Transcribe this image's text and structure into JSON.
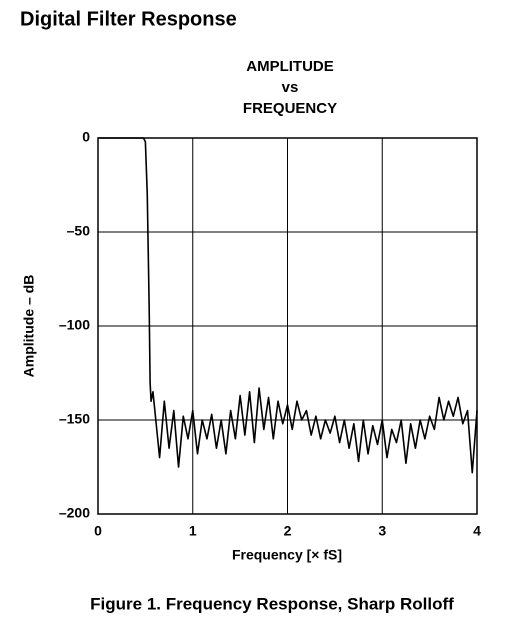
{
  "chart_data": {
    "type": "line",
    "heading": "Digital Filter Response",
    "title_lines": [
      "AMPLITUDE",
      "vs",
      "FREQUENCY"
    ],
    "x_label": "Frequency [× fS]",
    "y_label": "Amplitude – dB",
    "caption": "Figure 1. Frequency Response, Sharp Rolloff",
    "xlim": [
      0,
      4
    ],
    "ylim": [
      -200,
      0
    ],
    "xticks": [
      0,
      1,
      2,
      3,
      4
    ],
    "yticks": [
      0,
      {
        "value": -50,
        "label": "–50"
      },
      {
        "value": -100,
        "label": "–100"
      },
      {
        "value": -150,
        "label": "–150"
      },
      {
        "value": -200,
        "label": "–200"
      }
    ],
    "grid": true,
    "color": "#000000",
    "x": [
      0,
      0.2,
      0.4,
      0.48,
      0.5,
      0.52,
      0.54,
      0.55,
      0.56,
      0.58,
      0.6,
      0.65,
      0.7,
      0.75,
      0.8,
      0.85,
      0.9,
      0.95,
      1.0,
      1.05,
      1.1,
      1.15,
      1.2,
      1.25,
      1.3,
      1.35,
      1.4,
      1.45,
      1.5,
      1.55,
      1.6,
      1.65,
      1.7,
      1.75,
      1.8,
      1.85,
      1.9,
      1.95,
      2.0,
      2.05,
      2.1,
      2.15,
      2.2,
      2.25,
      2.3,
      2.35,
      2.4,
      2.45,
      2.5,
      2.55,
      2.6,
      2.65,
      2.7,
      2.75,
      2.8,
      2.85,
      2.9,
      2.95,
      3.0,
      3.05,
      3.1,
      3.15,
      3.2,
      3.25,
      3.3,
      3.35,
      3.4,
      3.45,
      3.5,
      3.55,
      3.6,
      3.65,
      3.7,
      3.75,
      3.8,
      3.85,
      3.9,
      3.95,
      4.0
    ],
    "values": [
      0,
      0,
      0,
      0,
      -2,
      -30,
      -90,
      -130,
      -140,
      -135,
      -145,
      -170,
      -140,
      -165,
      -145,
      -175,
      -148,
      -160,
      -145,
      -168,
      -150,
      -160,
      -147,
      -165,
      -150,
      -168,
      -145,
      -160,
      -137,
      -158,
      -135,
      -162,
      -133,
      -155,
      -138,
      -160,
      -140,
      -152,
      -142,
      -155,
      -140,
      -150,
      -145,
      -158,
      -148,
      -160,
      -150,
      -157,
      -148,
      -162,
      -150,
      -165,
      -152,
      -172,
      -150,
      -168,
      -153,
      -163,
      -150,
      -170,
      -155,
      -162,
      -150,
      -173,
      -152,
      -165,
      -150,
      -160,
      -148,
      -155,
      -138,
      -150,
      -140,
      -148,
      -138,
      -152,
      -145,
      -178,
      -145
    ]
  }
}
